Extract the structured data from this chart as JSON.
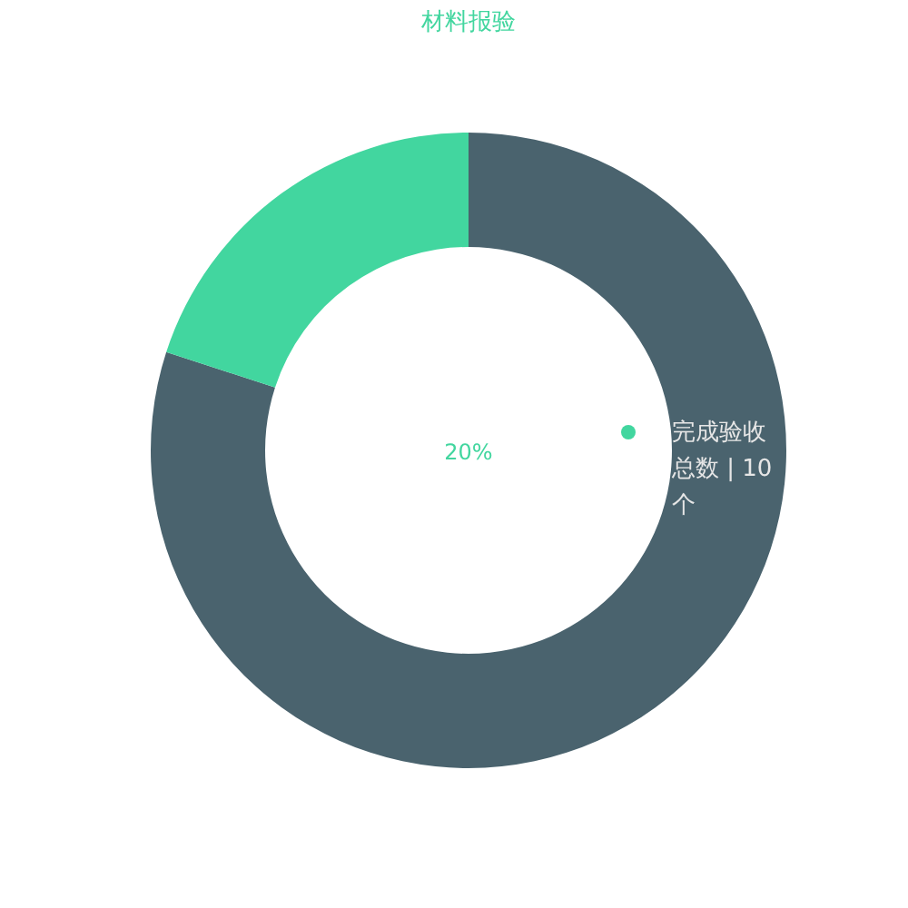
{
  "chart_data": {
    "type": "donut",
    "title": "材料报验",
    "categories": [
      null,
      "完成验收总数 | 10个"
    ],
    "values": [
      80,
      20
    ],
    "colors": [
      "#4a636e",
      "#42d69f"
    ],
    "annotations": [
      "20%"
    ],
    "legend": "right"
  }
}
